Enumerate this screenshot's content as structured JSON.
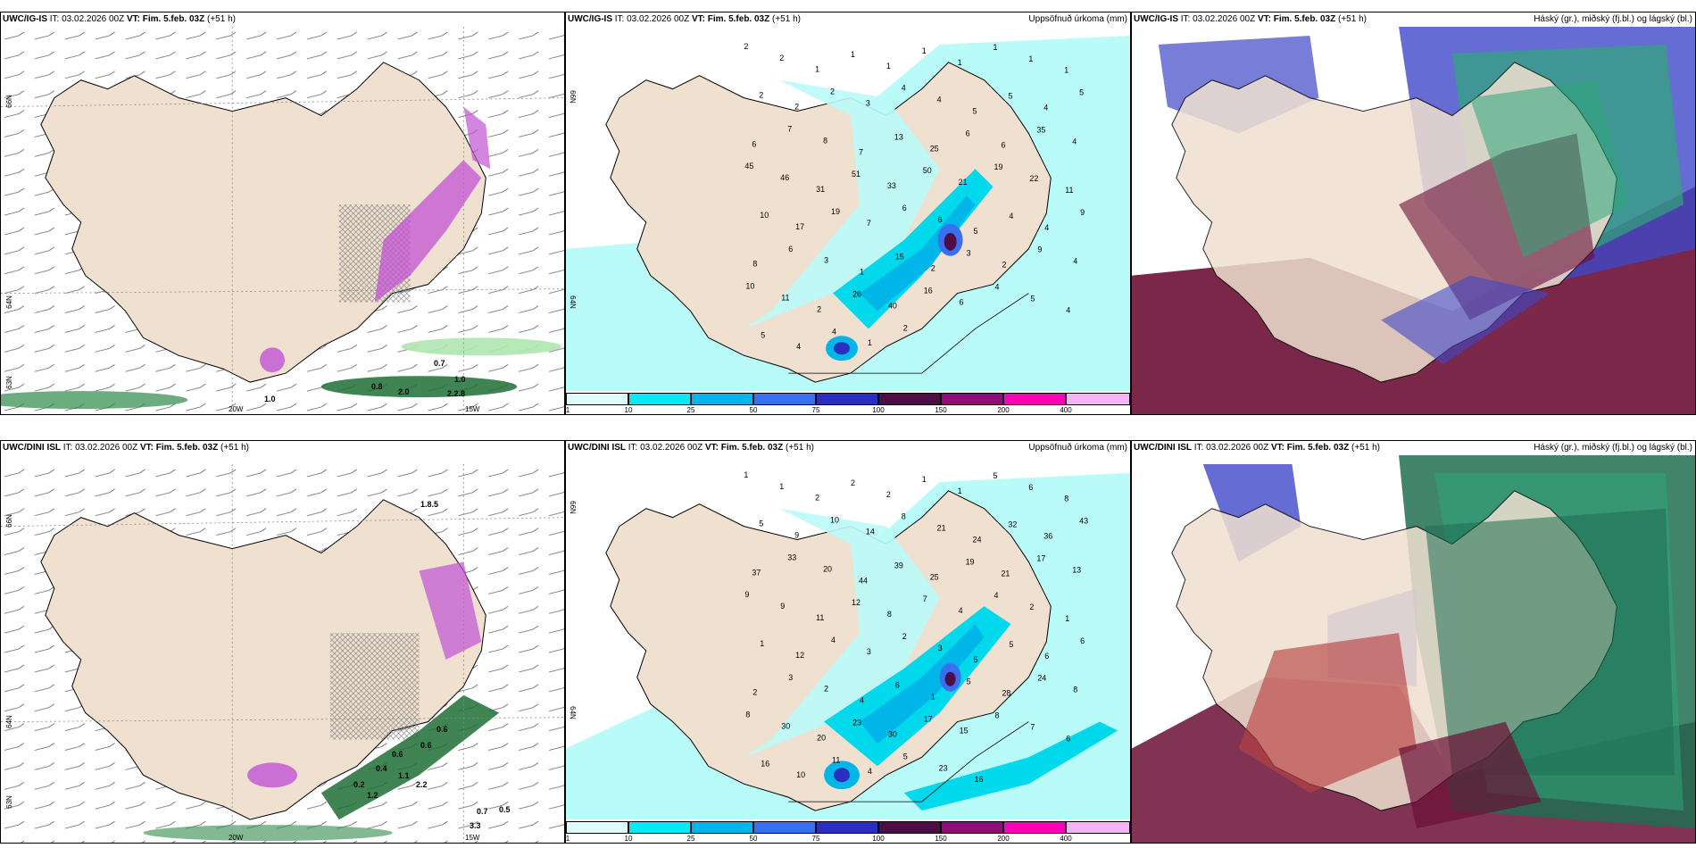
{
  "top_row": {
    "left": {
      "model": "UWC/IG-IS",
      "it_label": "IT:",
      "it_value": "03.02.2026 00Z",
      "vt_label": "VT:",
      "vt_value": "Fim. 5.feb. 03Z",
      "offset": "(+51 h)",
      "lat_labels": [
        "66N",
        "64N",
        "63N"
      ],
      "lon_labels": [
        "20W",
        "15W"
      ],
      "values": [
        "0.7",
        "1.0",
        "0.8",
        "2.0",
        "1.0",
        "2.2.8"
      ]
    },
    "middle": {
      "model": "UWC/IG-IS",
      "it_label": "IT:",
      "it_value": "03.02.2026 00Z",
      "vt_label": "VT:",
      "vt_value": "Fim. 5.feb. 03Z",
      "offset": "(+51 h)",
      "right_title": "Uppsöfnuð úrkoma (mm)",
      "lat_labels": [
        "66N",
        "64N"
      ],
      "points": [
        "2",
        "2",
        "1",
        "1",
        "1",
        "1",
        "1",
        "1",
        "1",
        "1",
        "2",
        "2",
        "2",
        "3",
        "4",
        "4",
        "5",
        "5",
        "4",
        "5",
        "6",
        "7",
        "8",
        "7",
        "13",
        "25",
        "6",
        "6",
        "35",
        "4",
        "45",
        "46",
        "31",
        "51",
        "33",
        "50",
        "21",
        "19",
        "22",
        "11",
        "10",
        "17",
        "19",
        "7",
        "6",
        "6",
        "5",
        "4",
        "4",
        "9",
        "8",
        "6",
        "3",
        "1",
        "15",
        "2",
        "3",
        "2",
        "9",
        "4",
        "10",
        "11",
        "2",
        "26",
        "40",
        "16",
        "6",
        "4",
        "5",
        "4",
        "5",
        "4",
        "4",
        "1",
        "2"
      ]
    },
    "right": {
      "model": "UWC/IG-IS",
      "it_label": "IT:",
      "it_value": "03.02.2026 00Z",
      "vt_label": "VT:",
      "vt_value": "Fim. 5.feb. 03Z",
      "offset": "(+51 h)",
      "right_title": "Háský (gr.), miðský (fj.bl.) og lágský (bl.)"
    }
  },
  "bottom_row": {
    "left": {
      "model": "UWC/DINI ISL",
      "it_label": "IT:",
      "it_value": "03.02.2026 00Z",
      "vt_label": "VT:",
      "vt_value": "Fim. 5.feb. 03Z",
      "offset": "(+51",
      "offset_wrap": "h)",
      "lat_labels": [
        "66N",
        "64N",
        "63N"
      ],
      "lon_labels": [
        "20W",
        "15W"
      ],
      "values": [
        "0.6",
        "0.6",
        "0.6",
        "0.4",
        "1.1",
        "0.2",
        "2.2",
        "1.2",
        "0.7",
        "0.5",
        "3.3",
        "1.8.5"
      ]
    },
    "middle": {
      "model": "UWC/DINI ISL",
      "it_label": "IT:",
      "it_value": "03.02.2026 00Z",
      "vt_label": "VT:",
      "vt_value": "Fim. 5.feb. 03Z",
      "offset": "(+51 h)",
      "right_title": "Uppsöfnuð úrkoma (mm)",
      "lat_labels": [
        "66N",
        "64N"
      ],
      "points": [
        "1",
        "1",
        "2",
        "2",
        "2",
        "1",
        "1",
        "5",
        "6",
        "8",
        "5",
        "9",
        "10",
        "14",
        "8",
        "21",
        "24",
        "32",
        "36",
        "43",
        "37",
        "33",
        "20",
        "44",
        "39",
        "25",
        "19",
        "21",
        "17",
        "13",
        "9",
        "9",
        "11",
        "12",
        "8",
        "7",
        "4",
        "4",
        "2",
        "1",
        "1",
        "12",
        "4",
        "3",
        "2",
        "3",
        "5",
        "5",
        "6",
        "6",
        "2",
        "3",
        "2",
        "4",
        "6",
        "1",
        "5",
        "28",
        "24",
        "8",
        "8",
        "30",
        "20",
        "23",
        "30",
        "17",
        "15",
        "8",
        "7",
        "6",
        "16",
        "10",
        "11",
        "4",
        "5",
        "23",
        "16"
      ]
    },
    "right": {
      "model": "UWC/DINI ISL",
      "it_label": "IT:",
      "it_value": "03.02.2026 00Z",
      "vt_label": "VT:",
      "vt_value": "Fim. 5.feb. 03Z",
      "offset": "(+51 h)",
      "right_title": "Háský (gr.), miðský (fj.bl.) og lágský (bl.)"
    }
  },
  "colorbar": {
    "ticks": [
      "1",
      "10",
      "25",
      "50",
      "75",
      "100",
      "150",
      "200",
      "400"
    ],
    "colors": [
      "#dffcff",
      "#00ecf0",
      "#00b5e8",
      "#3b6ff0",
      "#2a2fc0",
      "#4b0f46",
      "#8c0f78",
      "#ff00b4",
      "#f3b3f5"
    ]
  },
  "colors": {
    "land": "#efe0d0",
    "sea_precip": "#b9fbf8",
    "purple": "#c153d3",
    "green": "#2e8a4a",
    "maroon": "#6b0f35",
    "blue_cloud": "#3f47c8",
    "green_cloud": "#30a67a"
  }
}
